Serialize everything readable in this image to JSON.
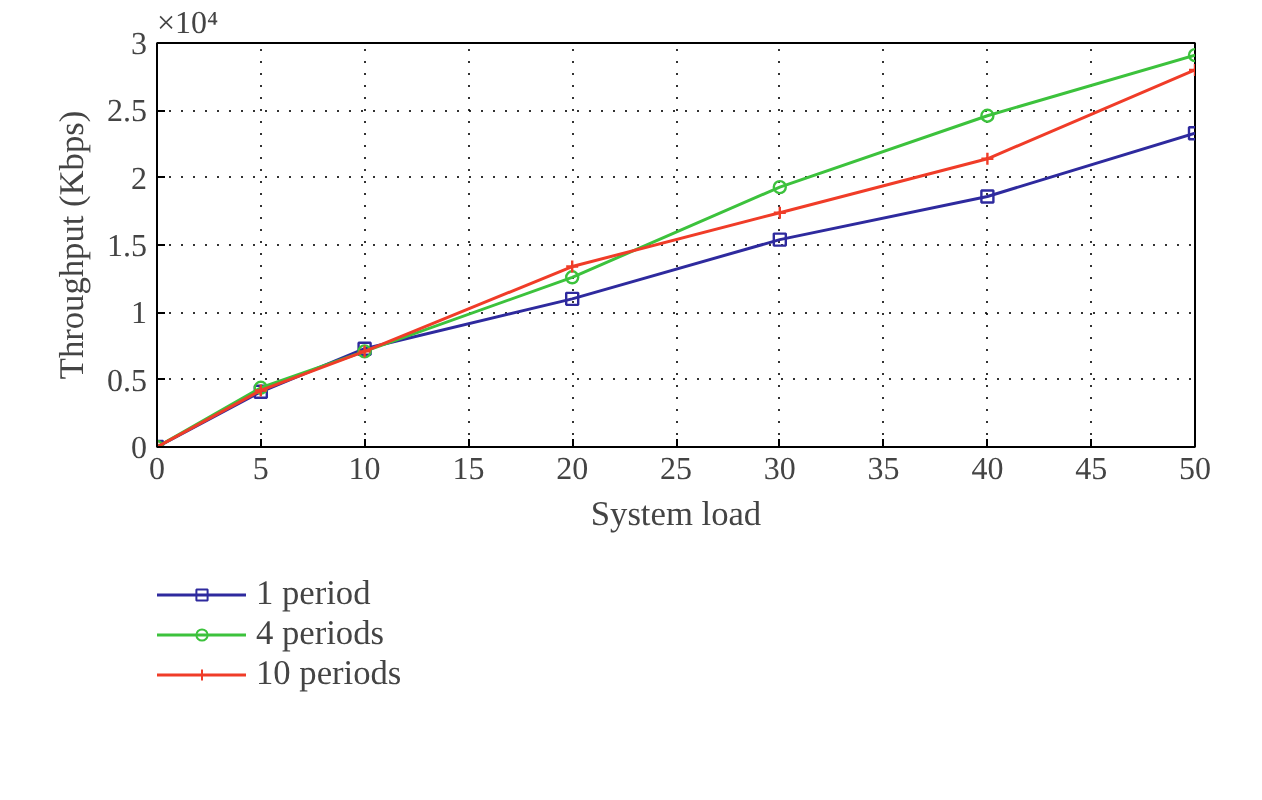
{
  "chart_data": {
    "type": "line",
    "xlabel": "System load",
    "ylabel": "Throughput (Kbps)",
    "annotations": [
      "×10⁴"
    ],
    "x": [
      0,
      5,
      10,
      20,
      30,
      40,
      50
    ],
    "series": [
      {
        "name": "1 period",
        "color": "#2e2a9e",
        "marker": "square",
        "values": [
          0,
          0.41,
          0.73,
          1.1,
          1.54,
          1.86,
          2.33
        ]
      },
      {
        "name": "4 periods",
        "color": "#3cc23c",
        "marker": "circle",
        "values": [
          0,
          0.44,
          0.71,
          1.26,
          1.93,
          2.46,
          2.91
        ]
      },
      {
        "name": "10 periods",
        "color": "#f03c28",
        "marker": "cross",
        "values": [
          0,
          0.42,
          0.71,
          1.34,
          1.74,
          2.14,
          2.8
        ]
      }
    ],
    "xlim": [
      0,
      50
    ],
    "ylim": [
      0,
      3
    ],
    "xticks": [
      0,
      5,
      10,
      15,
      20,
      25,
      30,
      35,
      40,
      45,
      50
    ],
    "yticks": [
      0,
      0.5,
      1,
      1.5,
      2,
      2.5,
      3
    ],
    "grid": true,
    "legend": "bottom left",
    "line_style": "solid"
  }
}
